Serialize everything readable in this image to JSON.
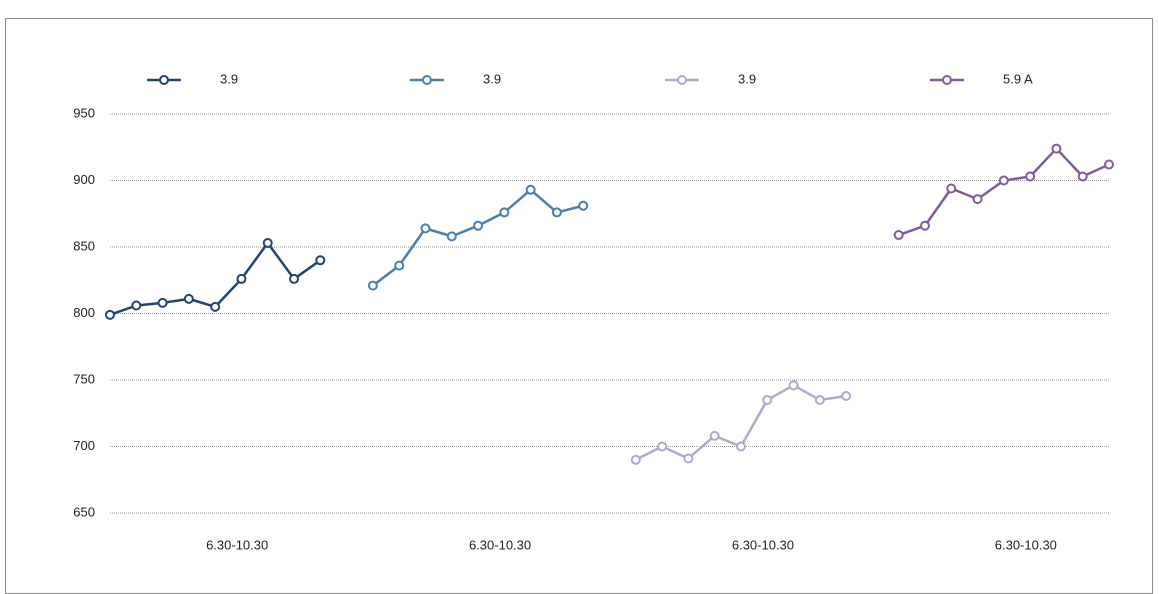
{
  "chart_data": {
    "type": "line",
    "categories": [
      null,
      null,
      null,
      null,
      "6.30-10.30",
      null,
      null,
      null,
      null,
      null,
      null,
      null,
      null,
      null,
      "6.30-10.30",
      null,
      null,
      null,
      null,
      null,
      null,
      null,
      null,
      null,
      "6.30-10.30",
      null,
      null,
      null,
      null,
      null,
      null,
      null,
      null,
      null,
      "6.30-10.30",
      null,
      null,
      null,
      null
    ],
    "series": [
      {
        "name": "3.9",
        "color": "#24456b",
        "values": [
          799,
          806,
          808,
          811,
          805,
          826,
          853,
          826,
          840,
          null,
          null,
          null,
          null,
          null,
          null,
          null,
          null,
          null,
          null,
          null,
          null,
          null,
          null,
          null,
          null,
          null,
          null,
          null,
          null,
          null,
          null,
          null,
          null,
          null,
          null,
          null,
          null,
          null,
          null
        ]
      },
      {
        "name": "3.9",
        "color": "#4a7fab",
        "values": [
          null,
          null,
          null,
          null,
          null,
          null,
          null,
          null,
          null,
          null,
          821,
          836,
          864,
          858,
          866,
          876,
          893,
          876,
          881,
          null,
          null,
          null,
          null,
          null,
          null,
          null,
          null,
          null,
          null,
          null,
          null,
          null,
          null,
          null,
          null,
          null,
          null,
          null,
          null
        ]
      },
      {
        "name": "3.9",
        "color": "#b3a7cc",
        "values": [
          null,
          null,
          null,
          null,
          null,
          null,
          null,
          null,
          null,
          null,
          null,
          null,
          null,
          null,
          null,
          null,
          null,
          null,
          null,
          null,
          690,
          700,
          691,
          708,
          700,
          735,
          746,
          735,
          738,
          null,
          null,
          null,
          null,
          null,
          null,
          null,
          null,
          null,
          null
        ]
      },
      {
        "name": "5.9   A",
        "color": "#7e5c9e",
        "values": [
          null,
          null,
          null,
          null,
          null,
          null,
          null,
          null,
          null,
          null,
          null,
          null,
          null,
          null,
          null,
          null,
          null,
          null,
          null,
          null,
          null,
          null,
          null,
          null,
          null,
          null,
          null,
          null,
          null,
          null,
          859,
          866,
          894,
          886,
          900,
          903,
          924,
          903,
          912
        ]
      }
    ],
    "ylim": [
      650,
      950
    ],
    "yticks": [
      650,
      700,
      750,
      800,
      850,
      900,
      950
    ],
    "grid": true,
    "legend": "top"
  }
}
